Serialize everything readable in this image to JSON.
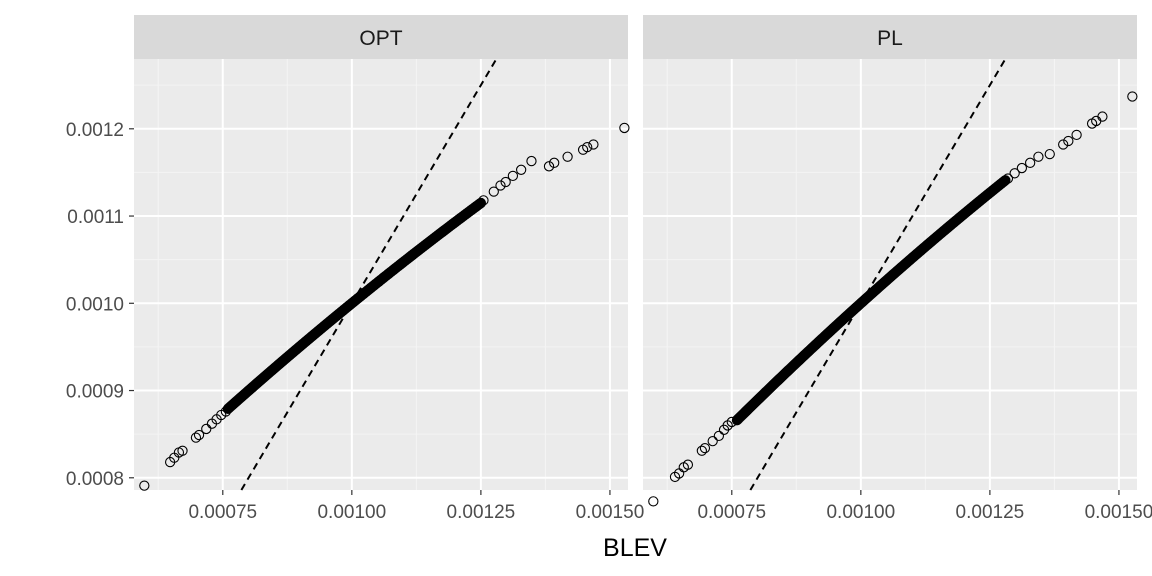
{
  "chart_data": {
    "type": "scatter",
    "xlabel": "BLEV",
    "ylabel": "",
    "xlim": [
      0.000578,
      0.001535
    ],
    "ylim": [
      0.000786,
      0.00128
    ],
    "x_ticks": [
      0.00075,
      0.001,
      0.00125,
      0.0015
    ],
    "x_tick_labels": [
      "0.00075",
      "0.00100",
      "0.00125",
      "0.00150"
    ],
    "y_ticks": [
      0.0008,
      0.0009,
      0.001,
      0.0011,
      0.0012
    ],
    "y_tick_labels": [
      "0.0008",
      "0.0009",
      "0.0010",
      "0.0011",
      "0.0012"
    ],
    "grid": true,
    "reference_line": {
      "style": "dashed",
      "slope": 1,
      "intercept": 0
    },
    "panels": [
      {
        "label": "OPT",
        "points": [
          [
            0.000598,
            0.000791
          ],
          [
            0.000648,
            0.000818
          ],
          [
            0.000656,
            0.000823
          ],
          [
            0.000665,
            0.000829
          ],
          [
            0.000672,
            0.000831
          ],
          [
            0.000698,
            0.000846
          ],
          [
            0.000704,
            0.000849
          ],
          [
            0.000718,
            0.000856
          ],
          [
            0.000729,
            0.000862
          ],
          [
            0.000738,
            0.000867
          ],
          [
            0.000747,
            0.000872
          ],
          [
            0.000756,
            0.000876
          ],
          [
            0.001255,
            0.001118
          ],
          [
            0.001275,
            0.001128
          ],
          [
            0.001288,
            0.001135
          ],
          [
            0.001298,
            0.001139
          ],
          [
            0.001312,
            0.001146
          ],
          [
            0.001328,
            0.001153
          ],
          [
            0.001348,
            0.001163
          ],
          [
            0.001382,
            0.001157
          ],
          [
            0.001392,
            0.001161
          ],
          [
            0.001418,
            0.001168
          ],
          [
            0.001448,
            0.001176
          ],
          [
            0.001456,
            0.001179
          ],
          [
            0.001468,
            0.001182
          ],
          [
            0.001528,
            0.001201
          ]
        ],
        "curve": {
          "x_range": [
            0.00076,
            0.00125
          ],
          "y_at_x_min": 0.000879,
          "y_at_1e-3": 0.001,
          "y_at_x_max": 0.001115
        }
      },
      {
        "label": "PL",
        "points": [
          [
            0.000598,
            0.000773
          ],
          [
            0.00064,
            0.000801
          ],
          [
            0.000648,
            0.000805
          ],
          [
            0.000657,
            0.000812
          ],
          [
            0.000665,
            0.000815
          ],
          [
            0.000692,
            0.000831
          ],
          [
            0.000698,
            0.000834
          ],
          [
            0.000713,
            0.000842
          ],
          [
            0.000725,
            0.000848
          ],
          [
            0.000735,
            0.000855
          ],
          [
            0.000742,
            0.00086
          ],
          [
            0.00075,
            0.000864
          ],
          [
            0.001285,
            0.001143
          ],
          [
            0.001298,
            0.001149
          ],
          [
            0.001312,
            0.001155
          ],
          [
            0.001328,
            0.001161
          ],
          [
            0.001344,
            0.001168
          ],
          [
            0.001366,
            0.001171
          ],
          [
            0.001392,
            0.001182
          ],
          [
            0.001402,
            0.001186
          ],
          [
            0.001418,
            0.001193
          ],
          [
            0.001448,
            0.001206
          ],
          [
            0.001456,
            0.001209
          ],
          [
            0.001468,
            0.001214
          ],
          [
            0.001526,
            0.001237
          ]
        ],
        "curve": {
          "x_range": [
            0.00076,
            0.00128
          ],
          "y_at_x_min": 0.000866,
          "y_at_1e-3": 0.001,
          "y_at_x_max": 0.001141
        }
      }
    ]
  }
}
